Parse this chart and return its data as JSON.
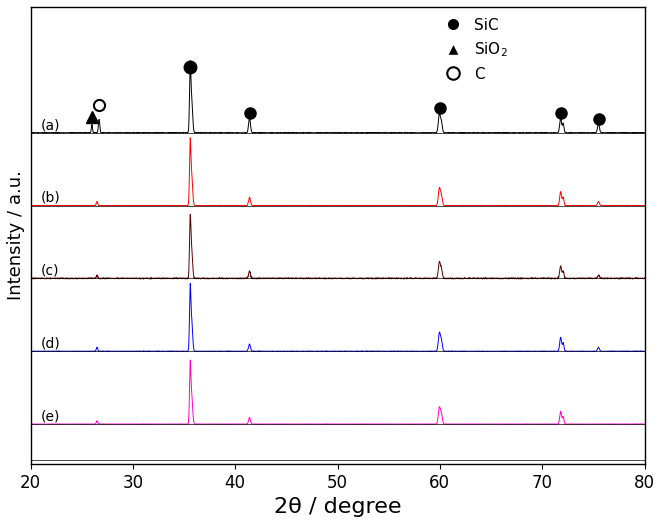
{
  "x_min": 20,
  "x_max": 80,
  "xlabel": "2θ / degree",
  "ylabel": "Intensity / a.u.",
  "xlabel_fontsize": 16,
  "ylabel_fontsize": 13,
  "series_labels": [
    "(a)",
    "(b)",
    "(c)",
    "(d)",
    "(e)"
  ],
  "series_colors": [
    "#000000",
    "#ff0000",
    "#5a0000",
    "#0000ff",
    "#ff00cc"
  ],
  "offsets": [
    1.0,
    0.78,
    0.56,
    0.34,
    0.12
  ],
  "background_color": "#ffffff",
  "tick_fontsize": 12,
  "legend_fontsize": 11,
  "peaks_a": [
    26.0,
    26.7,
    35.6,
    35.75,
    41.4,
    59.95,
    60.15,
    71.8,
    72.05,
    75.5
  ],
  "heights_a": [
    0.025,
    0.04,
    0.19,
    0.1,
    0.045,
    0.055,
    0.03,
    0.045,
    0.028,
    0.028
  ],
  "widths_a": [
    0.055,
    0.065,
    0.065,
    0.09,
    0.09,
    0.1,
    0.09,
    0.09,
    0.075,
    0.09
  ],
  "peaks_b": [
    26.5,
    35.6,
    35.75,
    41.4,
    59.95,
    60.15,
    71.8,
    72.05,
    75.5
  ],
  "heights_b": [
    0.012,
    0.18,
    0.09,
    0.025,
    0.052,
    0.028,
    0.042,
    0.025,
    0.012
  ],
  "widths_b": [
    0.065,
    0.065,
    0.09,
    0.09,
    0.1,
    0.09,
    0.09,
    0.075,
    0.09
  ],
  "peaks_c": [
    26.5,
    35.6,
    35.75,
    41.4,
    59.95,
    60.15,
    71.8,
    72.05,
    75.5
  ],
  "heights_c": [
    0.01,
    0.17,
    0.085,
    0.022,
    0.048,
    0.026,
    0.038,
    0.022,
    0.01
  ],
  "widths_c": [
    0.065,
    0.065,
    0.09,
    0.09,
    0.1,
    0.09,
    0.09,
    0.075,
    0.09
  ],
  "peaks_d": [
    26.5,
    35.6,
    35.75,
    41.4,
    59.95,
    60.15,
    71.8,
    72.05,
    75.5
  ],
  "heights_d": [
    0.012,
    0.18,
    0.09,
    0.022,
    0.055,
    0.03,
    0.042,
    0.025,
    0.012
  ],
  "widths_d": [
    0.065,
    0.065,
    0.09,
    0.09,
    0.1,
    0.09,
    0.09,
    0.075,
    0.09
  ],
  "peaks_e": [
    26.5,
    35.6,
    35.75,
    41.4,
    59.95,
    60.15,
    71.8,
    72.05
  ],
  "heights_e": [
    0.01,
    0.17,
    0.085,
    0.02,
    0.05,
    0.028,
    0.038,
    0.022
  ],
  "widths_e": [
    0.065,
    0.065,
    0.09,
    0.09,
    0.1,
    0.09,
    0.09,
    0.075
  ]
}
